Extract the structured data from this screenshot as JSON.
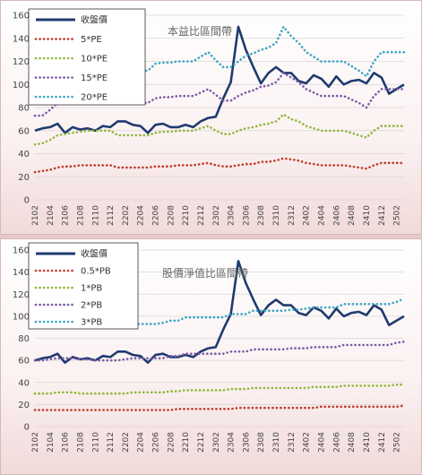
{
  "chart_data": [
    {
      "type": "line",
      "title": "本益比區間帶",
      "ylim": [
        0,
        160
      ],
      "yticks": [
        "0",
        "20",
        "40",
        "60",
        "80",
        "100",
        "120",
        "140",
        "160"
      ],
      "x_labels": [
        "2102",
        "2104",
        "2106",
        "2108",
        "2110",
        "2112",
        "2202",
        "2204",
        "2206",
        "2208",
        "2210",
        "2212",
        "2302",
        "2304",
        "2306",
        "2308",
        "2310",
        "2312",
        "2402",
        "2404",
        "2406",
        "2408",
        "2410",
        "2412",
        "2502"
      ],
      "grid": true,
      "legend_position": "top-left",
      "series": [
        {
          "name": "收盤價",
          "color": "#1f3a6e",
          "style": "solid",
          "values": [
            60,
            62,
            63,
            66,
            58,
            63,
            61,
            62,
            60,
            64,
            63,
            68,
            68,
            65,
            64,
            58,
            65,
            66,
            63,
            63,
            65,
            63,
            68,
            71,
            72,
            88,
            102,
            150,
            130,
            115,
            101,
            110,
            115,
            110,
            110,
            103,
            101,
            108,
            105,
            98,
            107,
            100,
            103,
            104,
            101,
            110,
            106,
            92,
            96,
            100
          ]
        },
        {
          "name": "5*PE",
          "color": "#c0392b",
          "style": "dotted",
          "values": [
            24,
            25,
            26,
            28,
            29,
            29,
            30,
            30,
            30,
            30,
            30,
            28,
            28,
            28,
            28,
            28,
            29,
            29,
            29,
            30,
            30,
            30,
            31,
            32,
            30,
            29,
            29,
            30,
            31,
            31,
            33,
            33,
            34,
            36,
            35,
            34,
            32,
            31,
            30,
            30,
            30,
            30,
            29,
            28,
            27,
            30,
            32,
            32,
            32,
            32
          ]
        },
        {
          "name": "10*PE",
          "color": "#8fb83b",
          "style": "dotted",
          "values": [
            48,
            49,
            52,
            56,
            57,
            58,
            59,
            60,
            60,
            60,
            60,
            56,
            56,
            56,
            56,
            56,
            58,
            59,
            59,
            60,
            60,
            60,
            62,
            64,
            60,
            57,
            57,
            60,
            62,
            63,
            65,
            66,
            68,
            74,
            70,
            68,
            64,
            62,
            60,
            60,
            60,
            60,
            58,
            56,
            54,
            60,
            64,
            64,
            64,
            64
          ]
        },
        {
          "name": "15*PE",
          "color": "#7b5aa6",
          "style": "dotted",
          "values": [
            73,
            73,
            78,
            84,
            86,
            87,
            88,
            88,
            88,
            88,
            88,
            84,
            84,
            84,
            84,
            84,
            88,
            89,
            89,
            90,
            90,
            90,
            93,
            96,
            91,
            86,
            86,
            90,
            93,
            95,
            98,
            99,
            102,
            110,
            106,
            102,
            96,
            93,
            90,
            90,
            90,
            90,
            87,
            84,
            80,
            90,
            96,
            96,
            96,
            96
          ]
        },
        {
          "name": "20*PE",
          "color": "#3aa6c4",
          "style": "dotted",
          "values": [
            97,
            98,
            104,
            112,
            114,
            116,
            117,
            117,
            117,
            117,
            117,
            112,
            112,
            112,
            112,
            112,
            118,
            119,
            119,
            120,
            120,
            120,
            124,
            128,
            121,
            115,
            115,
            120,
            125,
            127,
            130,
            132,
            136,
            150,
            142,
            136,
            128,
            124,
            120,
            120,
            120,
            120,
            116,
            112,
            107,
            120,
            128,
            128,
            128,
            128
          ]
        }
      ]
    },
    {
      "type": "line",
      "title": "股價淨值比區間帶",
      "ylim": [
        0,
        160
      ],
      "yticks": [
        "0",
        "20",
        "40",
        "60",
        "80",
        "100",
        "120",
        "140",
        "160"
      ],
      "x_labels": [
        "2102",
        "2104",
        "2106",
        "2108",
        "2110",
        "2112",
        "2202",
        "2204",
        "2206",
        "2208",
        "2210",
        "2212",
        "2302",
        "2304",
        "2306",
        "2308",
        "2310",
        "2312",
        "2402",
        "2404",
        "2406",
        "2408",
        "2410",
        "2412",
        "2502"
      ],
      "grid": true,
      "legend_position": "top-left",
      "series": [
        {
          "name": "收盤價",
          "color": "#1f3a6e",
          "style": "solid",
          "values": [
            60,
            62,
            63,
            66,
            58,
            63,
            61,
            62,
            60,
            64,
            63,
            68,
            68,
            65,
            64,
            58,
            65,
            66,
            63,
            63,
            65,
            63,
            68,
            71,
            72,
            88,
            102,
            150,
            130,
            115,
            101,
            110,
            115,
            110,
            110,
            103,
            101,
            108,
            105,
            98,
            107,
            100,
            103,
            104,
            101,
            110,
            106,
            92,
            96,
            100
          ]
        },
        {
          "name": "0.5*PB",
          "color": "#c0392b",
          "style": "dotted",
          "values": [
            15,
            15,
            15,
            15,
            15,
            15,
            15,
            15,
            15,
            15,
            15,
            15,
            15,
            15,
            15,
            15,
            15,
            15,
            15,
            16,
            16,
            16,
            16,
            16,
            16,
            16,
            16,
            17,
            17,
            17,
            17,
            17,
            17,
            17,
            17,
            17,
            17,
            17,
            18,
            18,
            18,
            18,
            18,
            18,
            18,
            18,
            18,
            18,
            18,
            19
          ]
        },
        {
          "name": "1*PB",
          "color": "#8fb83b",
          "style": "dotted",
          "values": [
            30,
            30,
            30,
            31,
            31,
            31,
            30,
            30,
            30,
            30,
            30,
            30,
            30,
            31,
            31,
            31,
            31,
            31,
            32,
            32,
            33,
            33,
            33,
            33,
            33,
            33,
            34,
            34,
            34,
            35,
            35,
            35,
            35,
            35,
            35,
            35,
            35,
            36,
            36,
            36,
            36,
            37,
            37,
            37,
            37,
            37,
            37,
            37,
            38,
            38
          ]
        },
        {
          "name": "2*PB",
          "color": "#7b5aa6",
          "style": "dotted",
          "values": [
            60,
            60,
            61,
            62,
            62,
            62,
            61,
            61,
            60,
            60,
            60,
            60,
            61,
            62,
            62,
            62,
            62,
            62,
            64,
            64,
            66,
            66,
            66,
            66,
            66,
            66,
            68,
            68,
            68,
            70,
            70,
            70,
            70,
            70,
            71,
            71,
            71,
            72,
            72,
            72,
            72,
            74,
            74,
            74,
            74,
            74,
            74,
            74,
            76,
            77
          ]
        },
        {
          "name": "3*PB",
          "color": "#3aa6c4",
          "style": "dotted",
          "values": [
            90,
            90,
            91,
            93,
            93,
            93,
            92,
            92,
            90,
            90,
            90,
            90,
            92,
            93,
            93,
            93,
            93,
            94,
            96,
            96,
            99,
            99,
            99,
            99,
            99,
            99,
            102,
            102,
            102,
            105,
            105,
            105,
            105,
            105,
            106,
            106,
            107,
            108,
            108,
            108,
            108,
            111,
            111,
            111,
            111,
            111,
            111,
            111,
            113,
            116
          ]
        }
      ]
    }
  ]
}
